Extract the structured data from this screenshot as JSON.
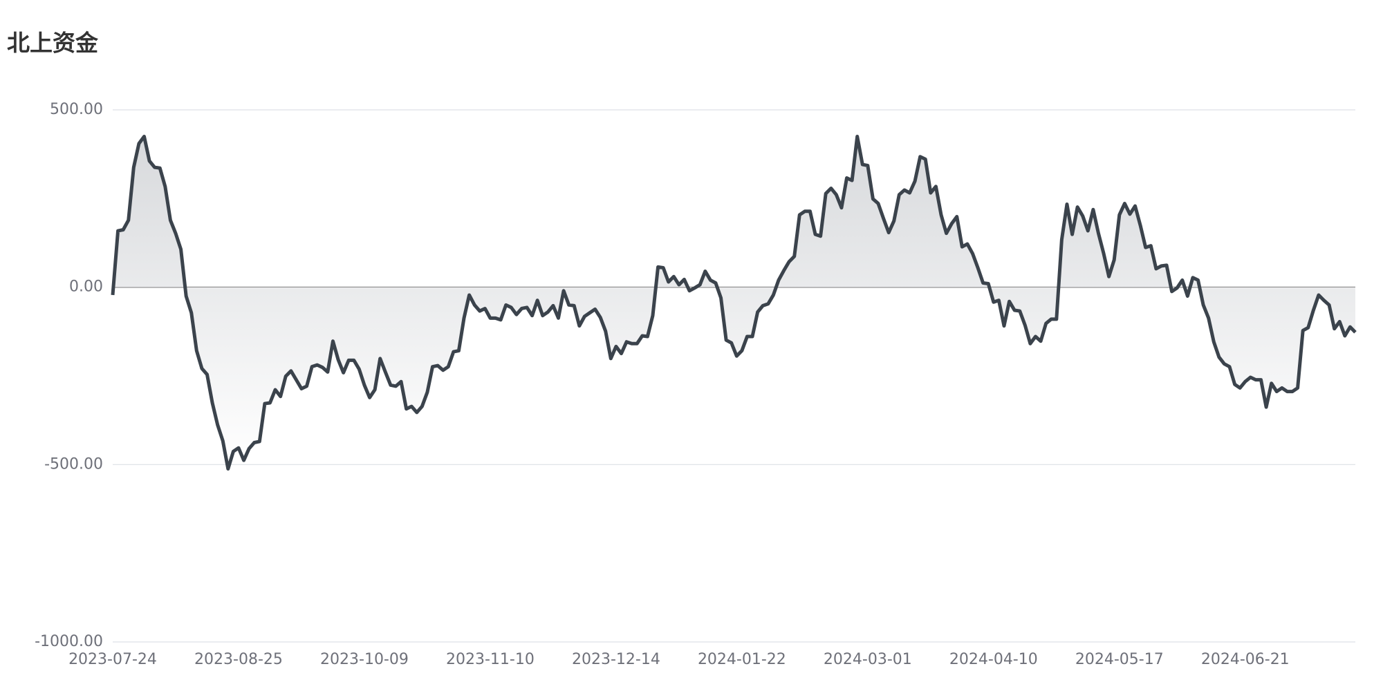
{
  "chart_data": {
    "type": "area",
    "title": "北上资金",
    "categories": [
      "2023-07-24",
      null,
      null,
      null,
      null,
      null,
      null,
      null,
      null,
      null,
      null,
      null,
      null,
      null,
      null,
      null,
      null,
      null,
      null,
      null,
      null,
      null,
      null,
      null,
      "2023-08-25",
      null,
      null,
      null,
      null,
      null,
      null,
      null,
      null,
      null,
      null,
      null,
      null,
      null,
      null,
      null,
      null,
      null,
      null,
      null,
      null,
      null,
      null,
      null,
      "2023-10-09",
      null,
      null,
      null,
      null,
      null,
      null,
      null,
      null,
      null,
      null,
      null,
      null,
      null,
      null,
      null,
      null,
      null,
      null,
      null,
      null,
      null,
      null,
      null,
      "2023-11-10",
      null,
      null,
      null,
      null,
      null,
      null,
      null,
      null,
      null,
      null,
      null,
      null,
      null,
      null,
      null,
      null,
      null,
      null,
      null,
      null,
      null,
      null,
      null,
      "2023-12-14",
      null,
      null,
      null,
      null,
      null,
      null,
      null,
      null,
      null,
      null,
      null,
      null,
      null,
      null,
      null,
      null,
      null,
      null,
      null,
      null,
      null,
      null,
      null,
      "2024-01-22",
      null,
      null,
      null,
      null,
      null,
      null,
      null,
      null,
      null,
      null,
      null,
      null,
      null,
      null,
      null,
      null,
      null,
      null,
      null,
      null,
      null,
      null,
      null,
      "2024-03-01",
      null,
      null,
      null,
      null,
      null,
      null,
      null,
      null,
      null,
      null,
      null,
      null,
      null,
      null,
      null,
      null,
      null,
      null,
      null,
      null,
      null,
      null,
      null,
      "2024-04-10",
      null,
      null,
      null,
      null,
      null,
      null,
      null,
      null,
      null,
      null,
      null,
      null,
      null,
      null,
      null,
      null,
      null,
      null,
      null,
      null,
      null,
      null,
      null,
      "2024-05-17",
      null,
      null,
      null,
      null,
      null,
      null,
      null,
      null,
      null,
      null,
      null,
      null,
      null,
      null,
      null,
      null,
      null,
      null,
      null,
      null,
      null,
      null,
      null,
      "2024-06-21",
      null,
      null,
      null,
      null,
      null,
      null,
      null,
      null,
      null,
      null,
      null,
      null,
      null,
      null,
      null,
      null,
      null,
      null,
      null,
      null,
      null
    ],
    "values": [
      -22,
      159,
      162,
      189,
      338,
      405,
      425,
      356,
      338,
      336,
      284,
      189,
      152,
      107,
      -25,
      -72,
      -179,
      -229,
      -246,
      -326,
      -388,
      -433,
      -512,
      -463,
      -453,
      -488,
      -455,
      -438,
      -435,
      -328,
      -326,
      -289,
      -308,
      -251,
      -236,
      -261,
      -286,
      -279,
      -224,
      -219,
      -226,
      -239,
      -152,
      -204,
      -241,
      -206,
      -206,
      -231,
      -276,
      -311,
      -289,
      -201,
      -239,
      -276,
      -279,
      -266,
      -343,
      -336,
      -353,
      -336,
      -296,
      -224,
      -221,
      -234,
      -224,
      -182,
      -179,
      -87,
      -22,
      -50,
      -67,
      -60,
      -87,
      -87,
      -92,
      -50,
      -57,
      -77,
      -60,
      -57,
      -80,
      -37,
      -80,
      -70,
      -52,
      -87,
      -10,
      -50,
      -52,
      -109,
      -82,
      -72,
      -62,
      -85,
      -124,
      -201,
      -167,
      -187,
      -154,
      -159,
      -159,
      -137,
      -139,
      -80,
      57,
      55,
      15,
      30,
      7,
      22,
      -10,
      -2,
      7,
      45,
      20,
      12,
      -30,
      -149,
      -157,
      -194,
      -179,
      -139,
      -139,
      -70,
      -52,
      -47,
      -22,
      20,
      47,
      72,
      87,
      204,
      214,
      214,
      149,
      144,
      264,
      279,
      261,
      224,
      308,
      301,
      425,
      346,
      343,
      249,
      236,
      194,
      154,
      187,
      261,
      274,
      266,
      299,
      368,
      361,
      266,
      284,
      204,
      152,
      179,
      199,
      114,
      122,
      95,
      55,
      12,
      10,
      -42,
      -37,
      -109,
      -40,
      -65,
      -67,
      -107,
      -159,
      -139,
      -152,
      -102,
      -90,
      -90,
      134,
      234,
      149,
      226,
      201,
      159,
      219,
      152,
      95,
      30,
      77,
      204,
      236,
      206,
      229,
      174,
      112,
      117,
      52,
      60,
      62,
      -12,
      -2,
      20,
      -25,
      27,
      20,
      -50,
      -87,
      -154,
      -197,
      -216,
      -224,
      -274,
      -284,
      -266,
      -254,
      -261,
      -261,
      -338,
      -271,
      -294,
      -284,
      -294,
      -294,
      -284,
      -122,
      -114,
      -65,
      -22,
      -37,
      -50,
      -117,
      -97,
      -137,
      -112,
      -127
    ],
    "color": "#3b434c",
    "ylim": [
      -1000,
      500
    ],
    "yticks": [
      {
        "value": -1000,
        "label": "-1000.00"
      },
      {
        "value": -500,
        "label": "-500.00"
      },
      {
        "value": 0,
        "label": "0.00"
      },
      {
        "value": 500,
        "label": "500.00"
      }
    ],
    "grid": true
  }
}
